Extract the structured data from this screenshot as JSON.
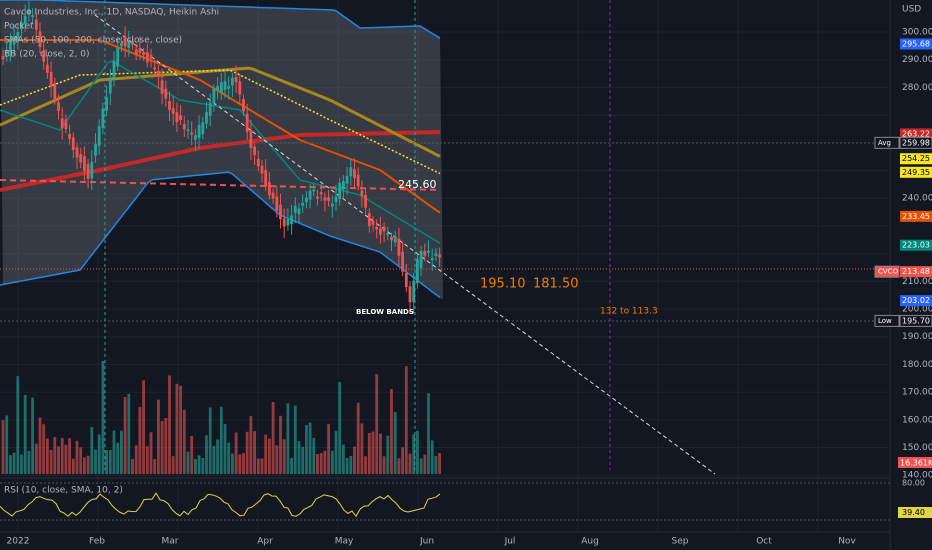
{
  "header": {
    "title": "Cavco Industries, Inc., 1D, NASDAQ, Heikin Ashi",
    "indicators": [
      "Pocket",
      "SMAs (50, 100, 200, close, close, close)",
      "BB (20, close, 2, 0)"
    ]
  },
  "price_axis": {
    "unit": "USD",
    "ticks": [
      "300.00",
      "290.00",
      "280.00",
      "240.00",
      "210.00",
      "200.00",
      "190.00",
      "180.00",
      "170.00",
      "160.00",
      "150.00",
      "140.00"
    ]
  },
  "price_tags": [
    {
      "text": "295.68",
      "color": "#2962ff"
    },
    {
      "text": "263.22",
      "color": "#c62828"
    },
    {
      "label": "Avg",
      "text": "259.98",
      "color": "#131722"
    },
    {
      "text": "254.25",
      "color": "#f9e526"
    },
    {
      "text": "249.35",
      "color": "#f9e526"
    },
    {
      "text": "233.45",
      "color": "#e65100"
    },
    {
      "text": "223.03",
      "color": "#00897b"
    },
    {
      "label": "CVCO",
      "text": "213.48",
      "color": "#ef5350"
    },
    {
      "text": "203.02",
      "color": "#2962ff"
    },
    {
      "label": "Low",
      "text": "195.70",
      "color": "#131722"
    }
  ],
  "volume_tag": "16.361K",
  "time_axis": [
    "2022",
    "Feb",
    "Mar",
    "Apr",
    "May",
    "Jun",
    "Jul",
    "Aug",
    "Sep",
    "Oct",
    "Nov"
  ],
  "annotations": {
    "price_level": "245.60",
    "target_1": "195.10",
    "target_2": "181.50",
    "range": "132 to 113.3",
    "note": "BELOW BANDS"
  },
  "rsi": {
    "title": "RSI (10, close, SMA, 10, 2)",
    "ticks": [
      "80.00"
    ],
    "value": "39.40"
  }
}
